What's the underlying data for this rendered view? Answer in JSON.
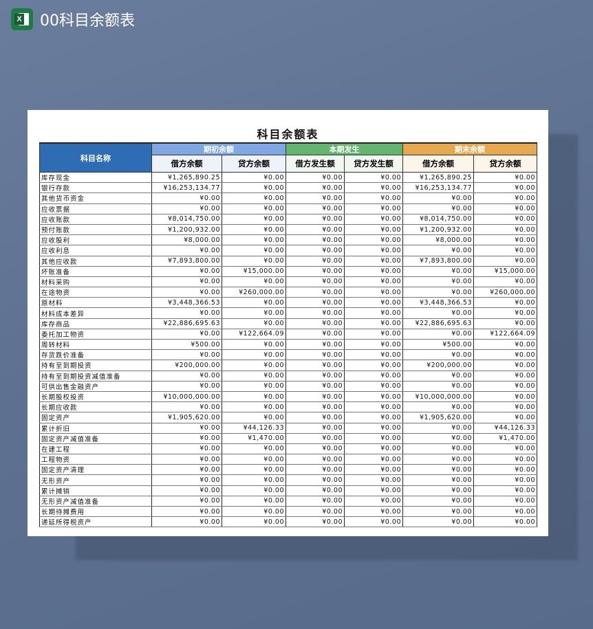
{
  "app": {
    "title": "00科目余额表",
    "icon": "excel-icon",
    "icon_letter": "X"
  },
  "sheet": {
    "title": "科目余额表",
    "colors": {
      "name_header": "#2e6db3",
      "opening": "#7fa7e3",
      "current": "#63b46c",
      "closing": "#e8a94e"
    },
    "headers": {
      "name": "科目名称",
      "groups": [
        "期初余额",
        "本期发生",
        "期末余额"
      ],
      "subs": [
        "借方余额",
        "贷方余额",
        "借方发生额",
        "贷方发生额",
        "借方余额",
        "贷方余额"
      ]
    },
    "rows": [
      [
        "库存现金",
        "¥1,265,890.25",
        "¥0.00",
        "¥0.00",
        "¥0.00",
        "¥1,265,890.25",
        "¥0.00"
      ],
      [
        "银行存款",
        "¥16,253,134.77",
        "¥0.00",
        "¥0.00",
        "¥0.00",
        "¥16,253,134.77",
        "¥0.00"
      ],
      [
        "其他货币资金",
        "¥0.00",
        "¥0.00",
        "¥0.00",
        "¥0.00",
        "¥0.00",
        "¥0.00"
      ],
      [
        "应收票据",
        "¥0.00",
        "¥0.00",
        "¥0.00",
        "¥0.00",
        "¥0.00",
        "¥0.00"
      ],
      [
        "应收账款",
        "¥8,014,750.00",
        "¥0.00",
        "¥0.00",
        "¥0.00",
        "¥8,014,750.00",
        "¥0.00"
      ],
      [
        "预付账款",
        "¥1,200,932.00",
        "¥0.00",
        "¥0.00",
        "¥0.00",
        "¥1,200,932.00",
        "¥0.00"
      ],
      [
        "应收股利",
        "¥8,000.00",
        "¥0.00",
        "¥0.00",
        "¥0.00",
        "¥8,000.00",
        "¥0.00"
      ],
      [
        "应收利息",
        "¥0.00",
        "¥0.00",
        "¥0.00",
        "¥0.00",
        "¥0.00",
        "¥0.00"
      ],
      [
        "其他应收款",
        "¥7,893,800.00",
        "¥0.00",
        "¥0.00",
        "¥0.00",
        "¥7,893,800.00",
        "¥0.00"
      ],
      [
        "坏账准备",
        "¥0.00",
        "¥15,000.00",
        "¥0.00",
        "¥0.00",
        "¥0.00",
        "¥15,000.00"
      ],
      [
        "材料采购",
        "¥0.00",
        "¥0.00",
        "¥0.00",
        "¥0.00",
        "¥0.00",
        "¥0.00"
      ],
      [
        "在途物资",
        "¥0.00",
        "¥260,000.00",
        "¥0.00",
        "¥0.00",
        "¥0.00",
        "¥260,000.00"
      ],
      [
        "原材料",
        "¥3,448,366.53",
        "¥0.00",
        "¥0.00",
        "¥0.00",
        "¥3,448,366.53",
        "¥0.00"
      ],
      [
        "材料成本差异",
        "¥0.00",
        "¥0.00",
        "¥0.00",
        "¥0.00",
        "¥0.00",
        "¥0.00"
      ],
      [
        "库存商品",
        "¥22,886,695.63",
        "¥0.00",
        "¥0.00",
        "¥0.00",
        "¥22,886,695.63",
        "¥0.00"
      ],
      [
        "委托加工物资",
        "¥0.00",
        "¥122,664.09",
        "¥0.00",
        "¥0.00",
        "¥0.00",
        "¥122,664.09"
      ],
      [
        "周转材料",
        "¥500.00",
        "¥0.00",
        "¥0.00",
        "¥0.00",
        "¥500.00",
        "¥0.00"
      ],
      [
        "存货跌价准备",
        "¥0.00",
        "¥0.00",
        "¥0.00",
        "¥0.00",
        "¥0.00",
        "¥0.00"
      ],
      [
        "持有至到期投资",
        "¥200,000.00",
        "¥0.00",
        "¥0.00",
        "¥0.00",
        "¥200,000.00",
        "¥0.00"
      ],
      [
        "持有至到期投资减值准备",
        "¥0.00",
        "¥0.00",
        "¥0.00",
        "¥0.00",
        "¥0.00",
        "¥0.00"
      ],
      [
        "可供出售金融资产",
        "¥0.00",
        "¥0.00",
        "¥0.00",
        "¥0.00",
        "¥0.00",
        "¥0.00"
      ],
      [
        "长期股权投资",
        "¥10,000,000.00",
        "¥0.00",
        "¥0.00",
        "¥0.00",
        "¥10,000,000.00",
        "¥0.00"
      ],
      [
        "长期应收款",
        "¥0.00",
        "¥0.00",
        "¥0.00",
        "¥0.00",
        "¥0.00",
        "¥0.00"
      ],
      [
        "固定资产",
        "¥1,905,620.00",
        "¥0.00",
        "¥0.00",
        "¥0.00",
        "¥1,905,620.00",
        "¥0.00"
      ],
      [
        "累计折旧",
        "¥0.00",
        "¥44,126.33",
        "¥0.00",
        "¥0.00",
        "¥0.00",
        "¥44,126.33"
      ],
      [
        "固定资产减值准备",
        "¥0.00",
        "¥1,470.00",
        "¥0.00",
        "¥0.00",
        "¥0.00",
        "¥1,470.00"
      ],
      [
        "在建工程",
        "¥0.00",
        "¥0.00",
        "¥0.00",
        "¥0.00",
        "¥0.00",
        "¥0.00"
      ],
      [
        "工程物资",
        "¥0.00",
        "¥0.00",
        "¥0.00",
        "¥0.00",
        "¥0.00",
        "¥0.00"
      ],
      [
        "固定资产清理",
        "¥0.00",
        "¥0.00",
        "¥0.00",
        "¥0.00",
        "¥0.00",
        "¥0.00"
      ],
      [
        "无形资产",
        "¥0.00",
        "¥0.00",
        "¥0.00",
        "¥0.00",
        "¥0.00",
        "¥0.00"
      ],
      [
        "累计摊销",
        "¥0.00",
        "¥0.00",
        "¥0.00",
        "¥0.00",
        "¥0.00",
        "¥0.00"
      ],
      [
        "无形资产减值准备",
        "¥0.00",
        "¥0.00",
        "¥0.00",
        "¥0.00",
        "¥0.00",
        "¥0.00"
      ],
      [
        "长期待摊费用",
        "¥0.00",
        "¥0.00",
        "¥0.00",
        "¥0.00",
        "¥0.00",
        "¥0.00"
      ],
      [
        "递延所得税资产",
        "¥0.00",
        "¥0.00",
        "¥0.00",
        "¥0.00",
        "¥0.00",
        "¥0.00"
      ]
    ]
  }
}
